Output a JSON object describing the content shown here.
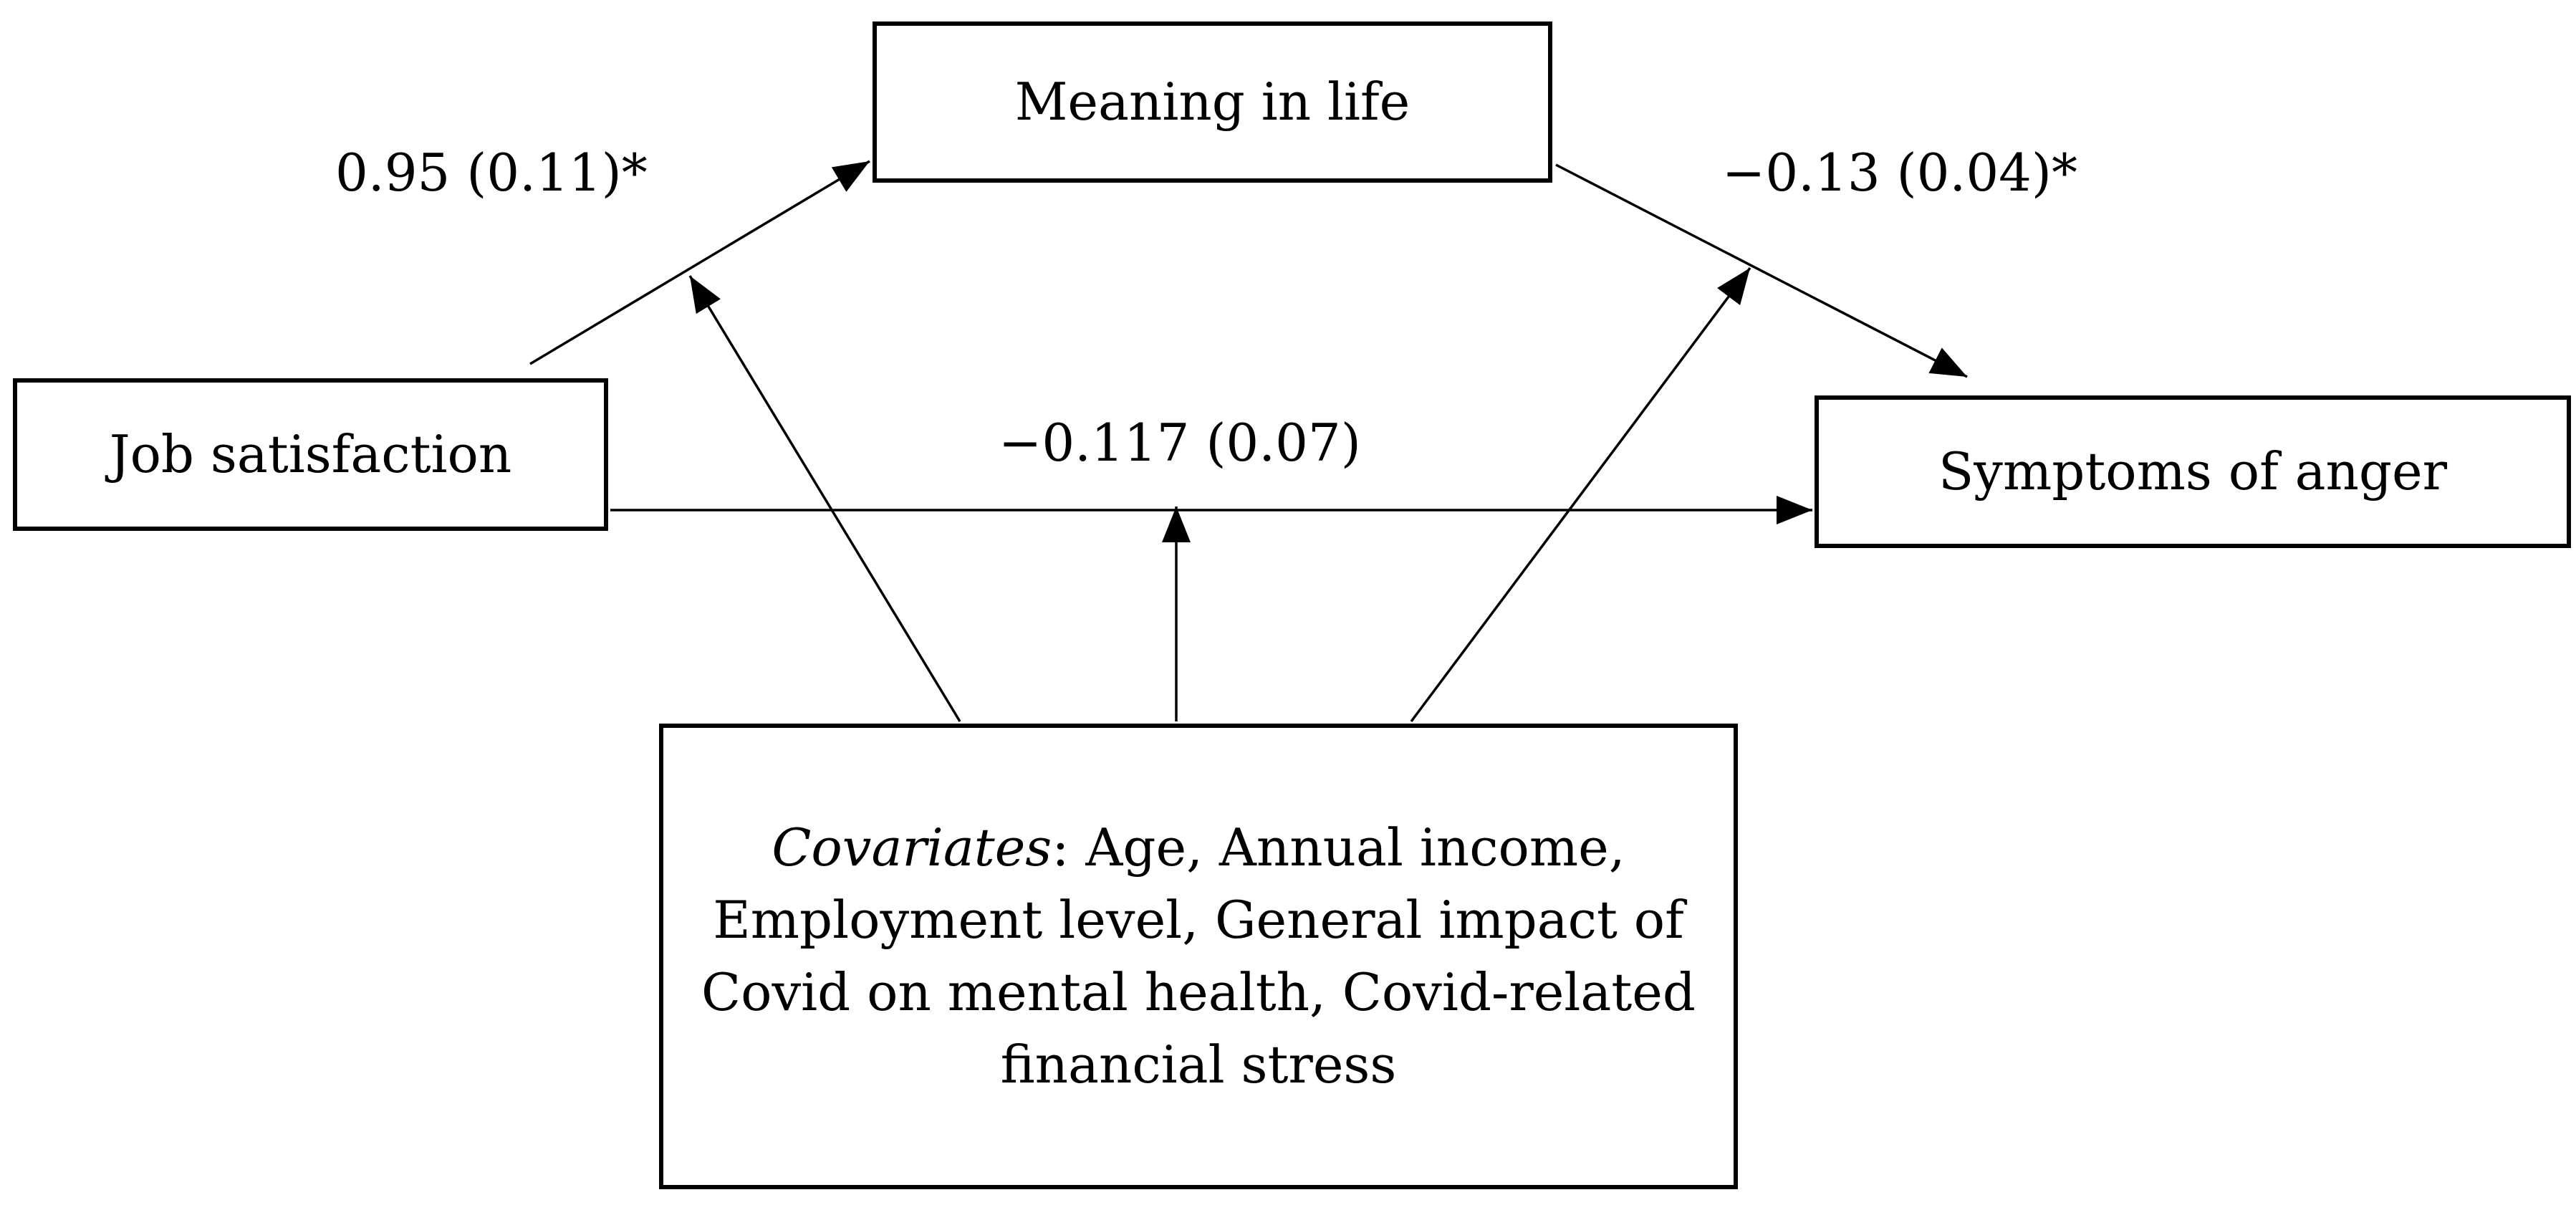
{
  "nodes": {
    "meaning": "Meaning in life",
    "job": "Job satisfaction",
    "anger": "Symptoms of anger",
    "covariates_label": "Covariates",
    "covariates_list": ": Age, Annual income, Employment level, General impact of Covid on mental health, Covid-related financial stress"
  },
  "coefficients": {
    "a_path": "0.95 (0.11)*",
    "b_path": "−0.13 (0.04)*",
    "c_path": "−0.117 (0.07)"
  }
}
